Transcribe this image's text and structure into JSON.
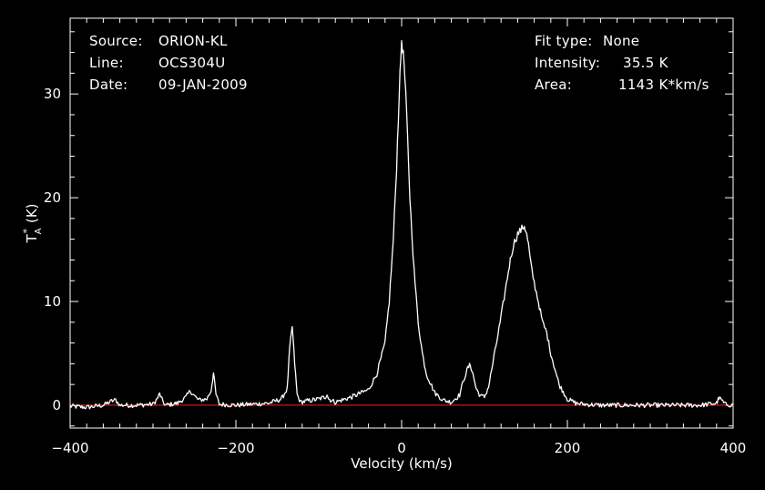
{
  "info_left": [
    {
      "label": "Source:",
      "value": "ORION-KL"
    },
    {
      "label": "Line:",
      "value": "OCS304U"
    },
    {
      "label": "Date:",
      "value": "09-JAN-2009"
    }
  ],
  "info_right": [
    {
      "label": "Fit type:",
      "value": "None"
    },
    {
      "label": "Intensity:",
      "value": "35.5 K"
    },
    {
      "label": "Area:",
      "value": "1143 K*km/s"
    }
  ],
  "colors": {
    "background": "#000000",
    "axes": "#ffffff",
    "spectrum": "#ffffff",
    "baseline": "#ff2020"
  },
  "chart_data": {
    "type": "line",
    "xlabel": "Velocity (km/s)",
    "ylabel": "T",
    "ylabel_sub": "A",
    "ylabel_sup": "*",
    "ylabel_unit": "(K)",
    "xlim": [
      -400,
      400
    ],
    "ylim": [
      -2.2,
      37.3
    ],
    "xticks": [
      -400,
      -200,
      0,
      200,
      400
    ],
    "yticks": [
      0,
      10,
      20,
      30
    ],
    "baseline_y": 0,
    "series": [
      {
        "x": [
          -400,
          -380,
          -360,
          -350,
          -345,
          -340,
          -320,
          -300,
          -295,
          -292,
          -289,
          -285,
          -270,
          -260,
          -255,
          -250,
          -245,
          -235,
          -230,
          -227,
          -224,
          -220,
          -200,
          -180,
          -160,
          -145,
          -138,
          -135,
          -132,
          -129,
          -126,
          -122,
          -115,
          -100,
          -92,
          -90,
          -88,
          -80,
          -60,
          -40,
          -30,
          -20,
          -15,
          -10,
          -6,
          -3,
          0,
          3,
          6,
          10,
          15,
          20,
          25,
          30,
          40,
          50,
          60,
          70,
          75,
          80,
          83,
          86,
          90,
          95,
          100,
          105,
          110,
          120,
          130,
          135,
          140,
          145,
          148,
          150,
          153,
          156,
          160,
          165,
          170,
          175,
          180,
          190,
          200,
          210,
          220,
          240,
          260,
          280,
          300,
          320,
          340,
          360,
          380,
          383,
          386,
          390,
          400
        ],
        "y": [
          -0.1,
          -0.2,
          0.0,
          0.4,
          0.5,
          0.0,
          0.0,
          0.1,
          0.6,
          1.1,
          0.5,
          0.0,
          0.2,
          0.8,
          1.4,
          0.9,
          0.5,
          0.6,
          1.4,
          3.1,
          1.0,
          0.1,
          0.0,
          0.1,
          0.2,
          0.6,
          1.6,
          5.5,
          7.6,
          4.0,
          1.0,
          0.3,
          0.4,
          0.6,
          0.8,
          1.1,
          0.6,
          0.3,
          0.8,
          1.5,
          3.0,
          6.0,
          10.0,
          16.0,
          23.0,
          30.0,
          35.2,
          33.0,
          28.0,
          20.0,
          13.0,
          8.0,
          5.0,
          3.0,
          1.2,
          0.5,
          0.3,
          1.0,
          2.5,
          3.6,
          3.9,
          3.0,
          1.6,
          0.9,
          0.8,
          1.8,
          4.0,
          8.5,
          13.5,
          15.5,
          16.5,
          17.0,
          17.3,
          16.8,
          15.5,
          13.5,
          11.8,
          10.0,
          8.0,
          7.0,
          5.0,
          2.0,
          0.6,
          0.2,
          0.1,
          0.0,
          0.0,
          0.0,
          0.0,
          0.0,
          0.0,
          0.0,
          0.2,
          0.7,
          0.5,
          0.1,
          0.0
        ]
      }
    ]
  }
}
